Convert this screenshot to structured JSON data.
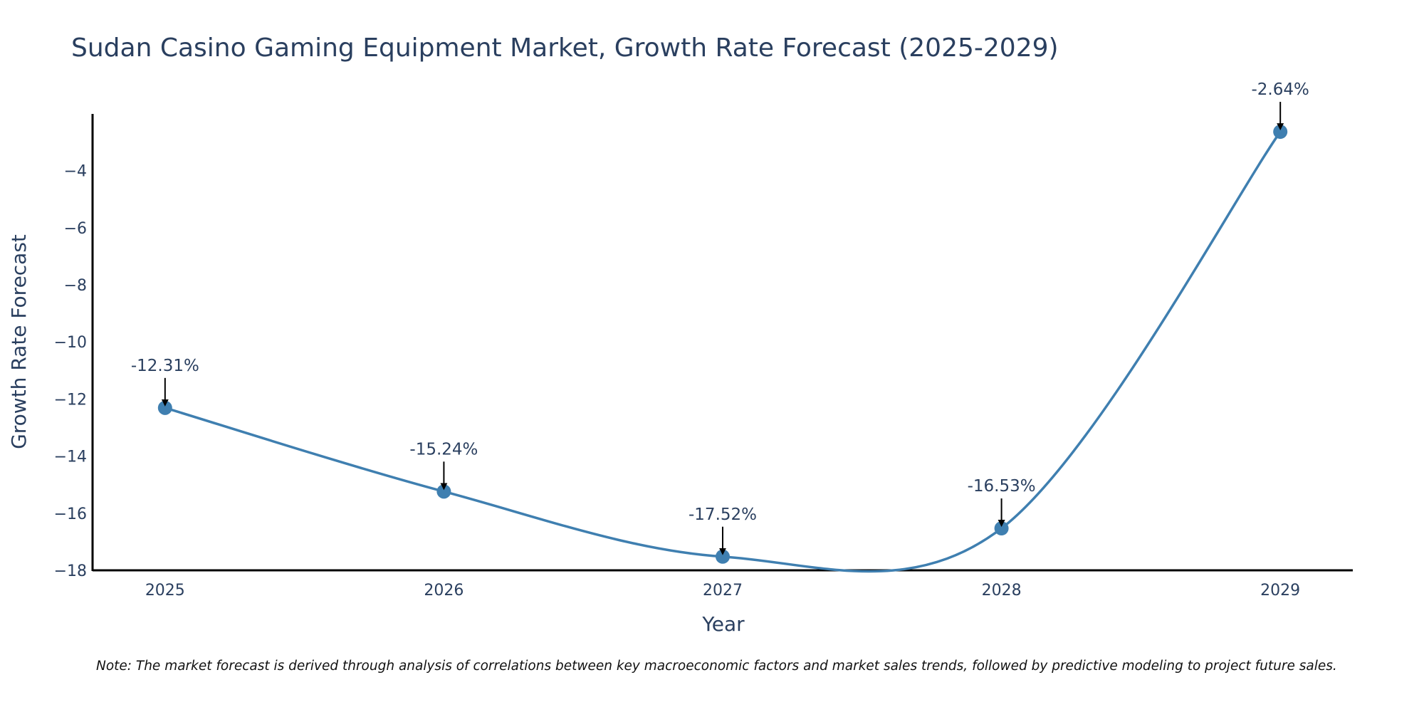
{
  "chart_data": {
    "type": "line",
    "title": "Sudan Casino Gaming Equipment Market, Growth Rate Forecast (2025-2029)",
    "xlabel": "Year",
    "ylabel": "Growth Rate Forecast",
    "categories": [
      "2025",
      "2026",
      "2027",
      "2028",
      "2029"
    ],
    "series": [
      {
        "name": "Growth Rate Forecast",
        "values": [
          -12.31,
          -15.24,
          -17.52,
          -16.53,
          -2.64
        ],
        "labels": [
          "-12.31%",
          "-15.24%",
          "-17.52%",
          "-16.53%",
          "-2.64%"
        ],
        "color": "#3f7fb0"
      }
    ],
    "ylim": [
      -18,
      -2.6
    ],
    "yticks": [
      -4,
      -6,
      -8,
      -10,
      -12,
      -14,
      -16,
      -18
    ],
    "ytick_labels": [
      "−4",
      "−6",
      "−8",
      "−10",
      "−12",
      "−14",
      "−16",
      "−18"
    ],
    "xlim": [
      2024.74,
      2029.26
    ],
    "grid": false,
    "smoothing": "spline",
    "annotation_arrows": true
  },
  "note": "Note: The market forecast is derived through analysis of correlations between key macroeconomic factors and market sales trends, followed by predictive modeling to project future sales."
}
